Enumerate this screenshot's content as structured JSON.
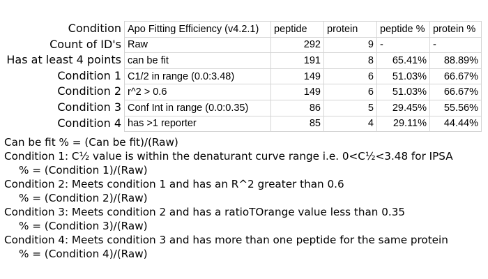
{
  "row_labels": [
    "Condition",
    "Count of ID's",
    "Has at least 4 points",
    "Condition 1",
    "Condition 2",
    "Condition 3",
    "Condition 4"
  ],
  "table": {
    "header": [
      "Apo Fitting Efficiency (v4.2.1)",
      "peptide",
      "protein",
      "peptide %",
      "protein %"
    ],
    "rows": [
      [
        "Raw",
        "292",
        "9",
        "-",
        "-"
      ],
      [
        "can be fit",
        "191",
        "8",
        "65.41%",
        "88.89%"
      ],
      [
        "C1/2 in range (0.0:3.48)",
        "149",
        "6",
        "51.03%",
        "66.67%"
      ],
      [
        "r^2 > 0.6",
        "149",
        "6",
        "51.03%",
        "66.67%"
      ],
      [
        "Conf Int in range (0.0:0.35)",
        "86",
        "5",
        "29.45%",
        "55.56%"
      ],
      [
        "has >1 reporter",
        "85",
        "4",
        "29.11%",
        "44.44%"
      ]
    ]
  },
  "notes": [
    "Can be fit % = (Can be fit)/(Raw)",
    "Condition 1: C½ value is within the denaturant curve range i.e. 0<C½<3.48 for IPSA",
    "% = (Condition 1)/(Raw)",
    "Condition 2: Meets condition 1 and has an R^2 greater than 0.6",
    "% = (Condition 2)/(Raw)",
    "Condition 3: Meets condition 2 and has a ratioTOrange value less than 0.35",
    "% = (Condition 3)/(Raw)",
    "Condition 4: Meets condition 3 and has more than one peptide for the same protein",
    "% = (Condition 4)/(Raw)"
  ]
}
